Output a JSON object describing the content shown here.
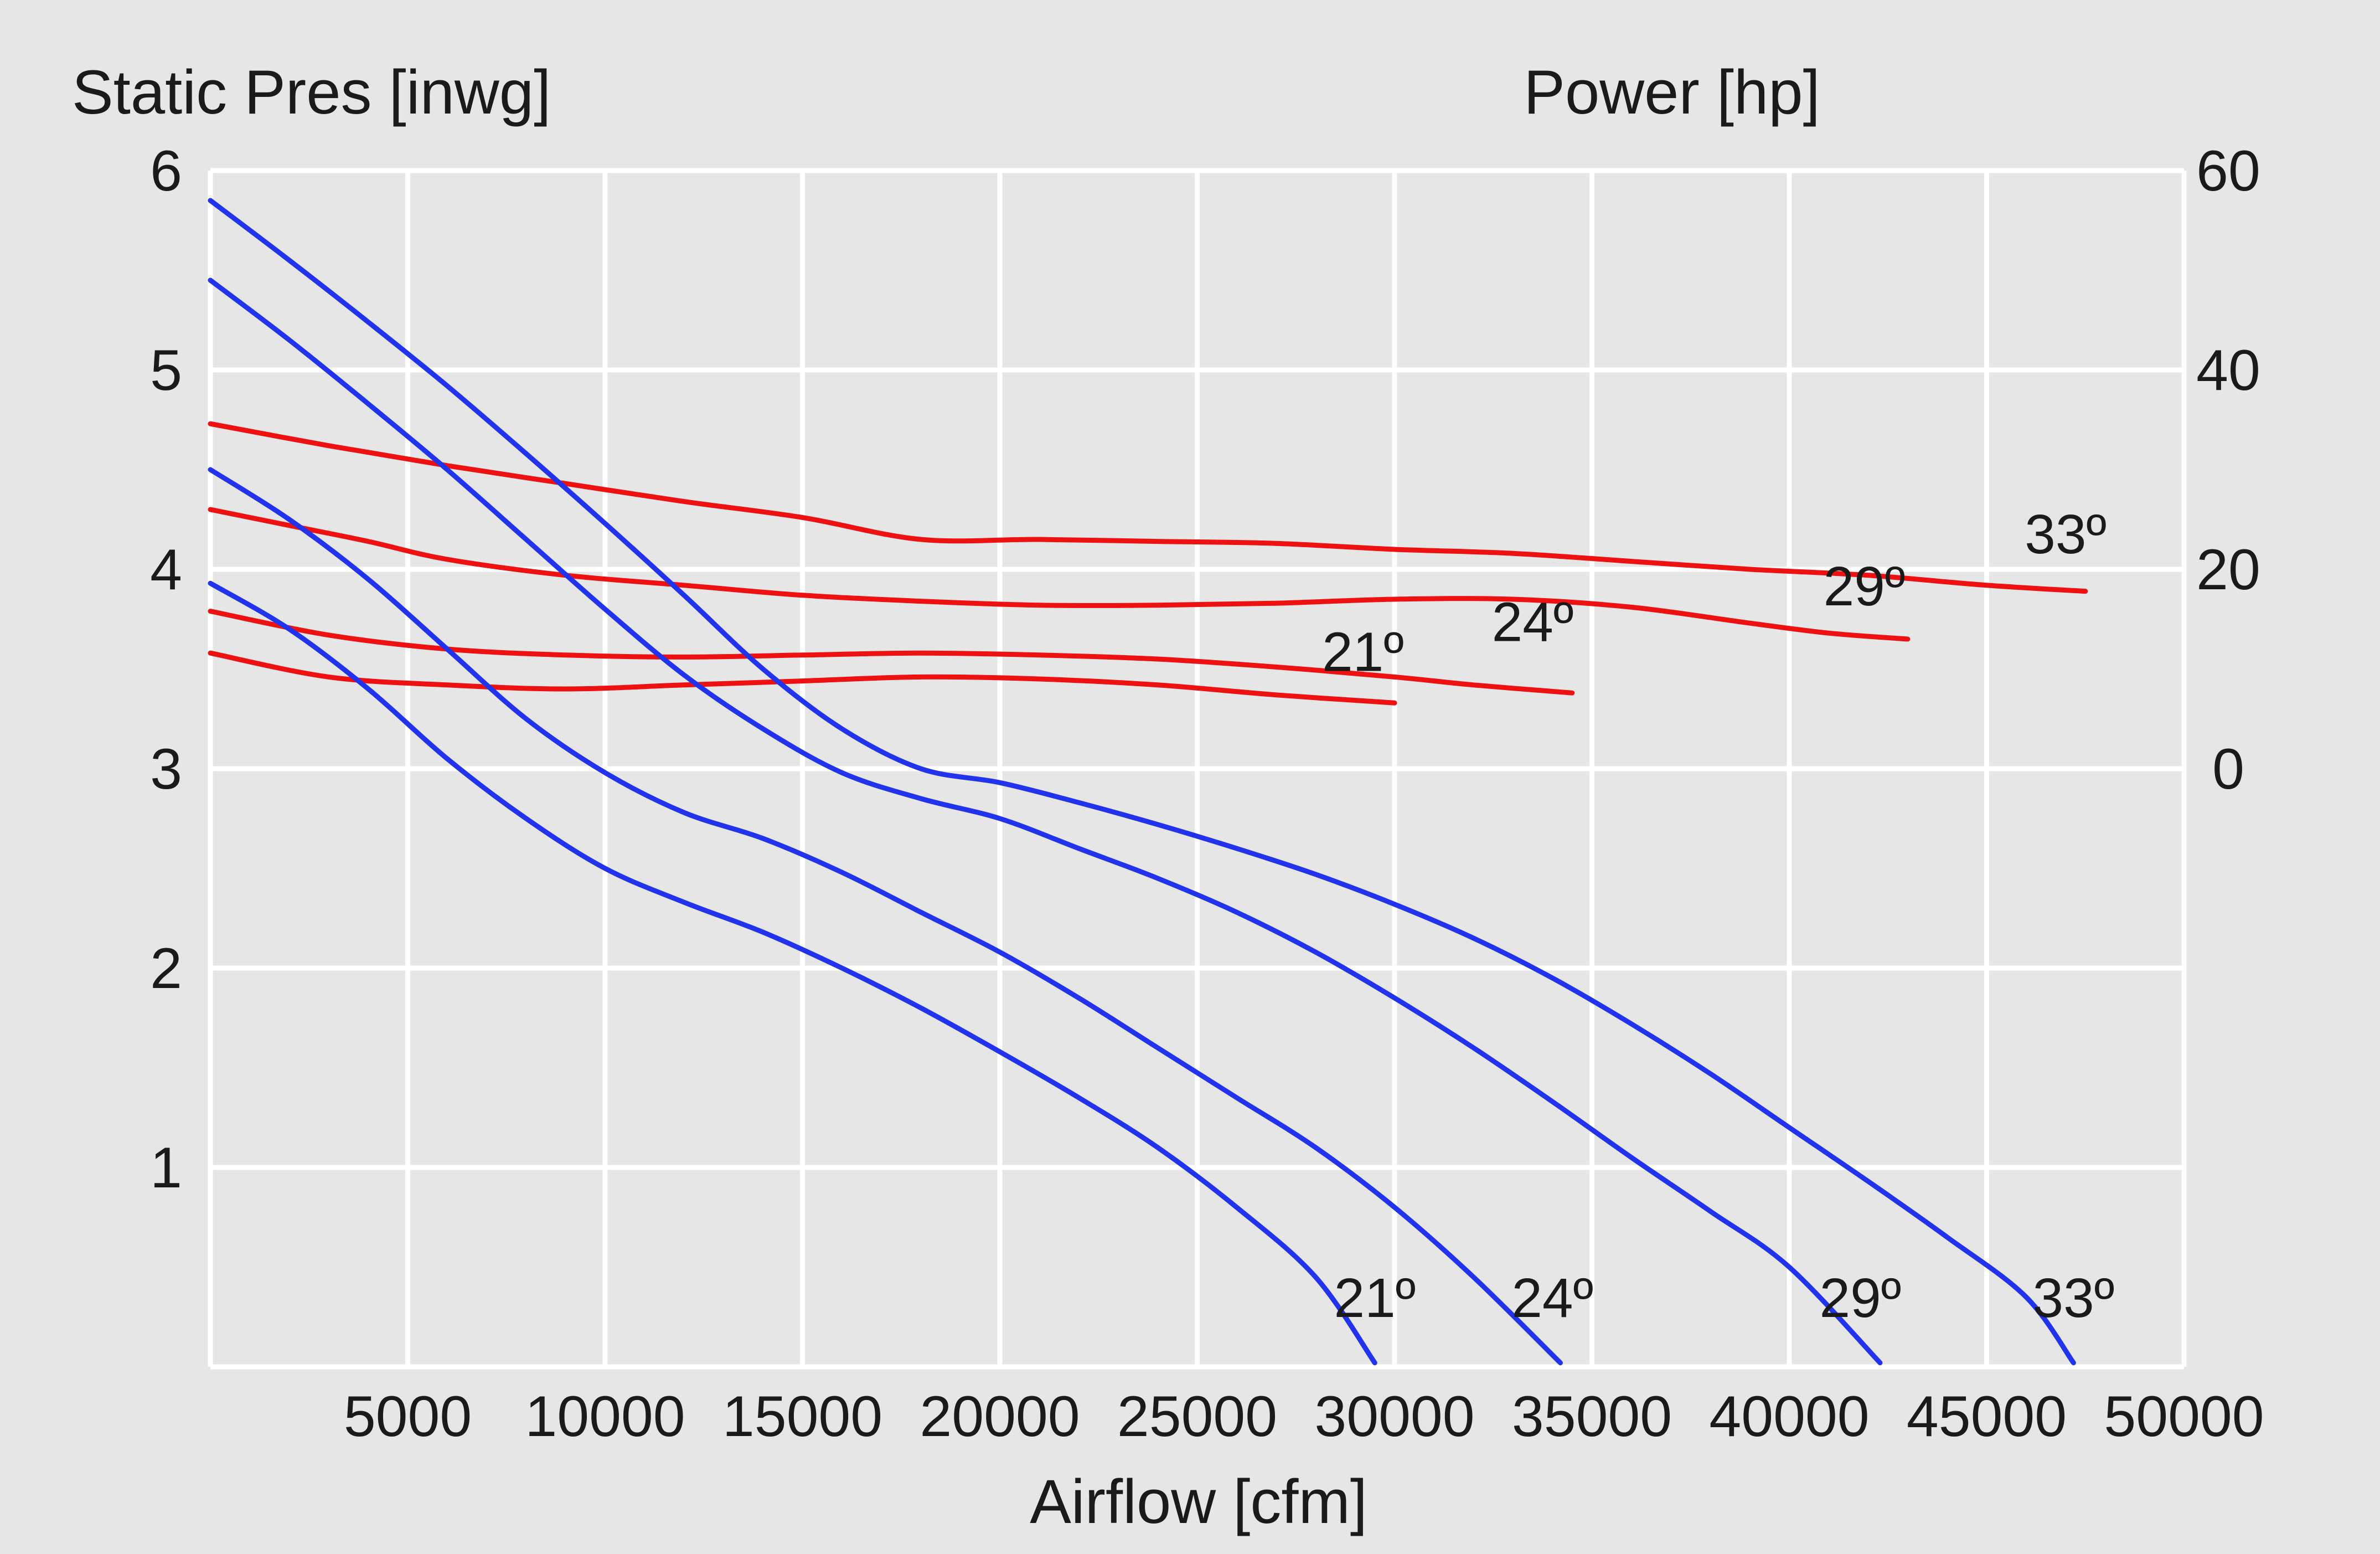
{
  "chart_data": {
    "type": "line",
    "title": "",
    "xlabel": "Airflow [cfm]",
    "ylabel_left": "Static Pres [inwg]",
    "ylabel_right": "Power [hp]",
    "xlim": [
      0,
      50000
    ],
    "ylim_left": [
      0,
      6
    ],
    "ylim_right": [
      -60,
      60
    ],
    "x_ticks": [
      5000,
      10000,
      15000,
      20000,
      25000,
      30000,
      35000,
      40000,
      45000,
      50000
    ],
    "y_left_ticks": [
      1,
      2,
      3,
      4,
      5,
      6
    ],
    "y_right_ticks": [
      0,
      20,
      40,
      60
    ],
    "grid": true,
    "colors": {
      "pressure": "#2233ee",
      "power": "#ee1111",
      "background": "#e6e6e6",
      "grid": "#ffffff"
    },
    "pressure_series": [
      {
        "name": "21º",
        "axis": "left",
        "points": [
          [
            0,
            3.93
          ],
          [
            2000,
            3.7
          ],
          [
            4000,
            3.4
          ],
          [
            6000,
            3.05
          ],
          [
            8000,
            2.75
          ],
          [
            10000,
            2.5
          ],
          [
            12000,
            2.33
          ],
          [
            14000,
            2.18
          ],
          [
            16000,
            2.0
          ],
          [
            18000,
            1.8
          ],
          [
            20000,
            1.58
          ],
          [
            22000,
            1.35
          ],
          [
            24000,
            1.1
          ],
          [
            26000,
            0.8
          ],
          [
            28000,
            0.45
          ],
          [
            29500,
            0.02
          ]
        ]
      },
      {
        "name": "24º",
        "axis": "left",
        "points": [
          [
            0,
            4.5
          ],
          [
            2000,
            4.25
          ],
          [
            4000,
            3.95
          ],
          [
            6000,
            3.6
          ],
          [
            8000,
            3.25
          ],
          [
            10000,
            2.98
          ],
          [
            12000,
            2.78
          ],
          [
            14000,
            2.65
          ],
          [
            16000,
            2.48
          ],
          [
            18000,
            2.28
          ],
          [
            20000,
            2.08
          ],
          [
            22000,
            1.85
          ],
          [
            24000,
            1.6
          ],
          [
            26000,
            1.35
          ],
          [
            28000,
            1.1
          ],
          [
            30000,
            0.8
          ],
          [
            32000,
            0.45
          ],
          [
            34200,
            0.02
          ]
        ]
      },
      {
        "name": "29º",
        "axis": "left",
        "points": [
          [
            0,
            5.45
          ],
          [
            2000,
            5.15
          ],
          [
            4000,
            4.83
          ],
          [
            6000,
            4.5
          ],
          [
            8000,
            4.15
          ],
          [
            10000,
            3.8
          ],
          [
            12000,
            3.47
          ],
          [
            14000,
            3.2
          ],
          [
            16000,
            2.98
          ],
          [
            18000,
            2.85
          ],
          [
            20000,
            2.75
          ],
          [
            22000,
            2.6
          ],
          [
            24000,
            2.45
          ],
          [
            26000,
            2.28
          ],
          [
            28000,
            2.08
          ],
          [
            30000,
            1.85
          ],
          [
            32000,
            1.6
          ],
          [
            34000,
            1.33
          ],
          [
            36000,
            1.05
          ],
          [
            38000,
            0.78
          ],
          [
            40000,
            0.5
          ],
          [
            42300,
            0.02
          ]
        ]
      },
      {
        "name": "33º",
        "axis": "left",
        "points": [
          [
            0,
            5.85
          ],
          [
            2000,
            5.55
          ],
          [
            4000,
            5.24
          ],
          [
            6000,
            4.92
          ],
          [
            8000,
            4.58
          ],
          [
            10000,
            4.23
          ],
          [
            12000,
            3.87
          ],
          [
            14000,
            3.5
          ],
          [
            16000,
            3.2
          ],
          [
            18000,
            3.0
          ],
          [
            20000,
            2.93
          ],
          [
            22000,
            2.83
          ],
          [
            24000,
            2.72
          ],
          [
            26000,
            2.6
          ],
          [
            28000,
            2.47
          ],
          [
            30000,
            2.32
          ],
          [
            32000,
            2.15
          ],
          [
            34000,
            1.95
          ],
          [
            36000,
            1.72
          ],
          [
            38000,
            1.47
          ],
          [
            40000,
            1.2
          ],
          [
            42000,
            0.93
          ],
          [
            44000,
            0.65
          ],
          [
            46000,
            0.35
          ],
          [
            47200,
            0.02
          ]
        ]
      }
    ],
    "power_series": [
      {
        "name": "21º",
        "axis": "right",
        "points": [
          [
            0,
            11.6
          ],
          [
            3000,
            9.2
          ],
          [
            6000,
            8.4
          ],
          [
            9000,
            8.0
          ],
          [
            12000,
            8.4
          ],
          [
            15000,
            8.8
          ],
          [
            18000,
            9.2
          ],
          [
            21000,
            9.0
          ],
          [
            24000,
            8.4
          ],
          [
            27000,
            7.4
          ],
          [
            30000,
            6.6
          ]
        ]
      },
      {
        "name": "24º",
        "axis": "right",
        "points": [
          [
            0,
            15.8
          ],
          [
            3000,
            13.4
          ],
          [
            6000,
            12.0
          ],
          [
            9000,
            11.4
          ],
          [
            12000,
            11.2
          ],
          [
            15000,
            11.4
          ],
          [
            18000,
            11.6
          ],
          [
            21000,
            11.4
          ],
          [
            24000,
            11.0
          ],
          [
            27000,
            10.2
          ],
          [
            30000,
            9.2
          ],
          [
            32000,
            8.4
          ],
          [
            34500,
            7.6
          ]
        ]
      },
      {
        "name": "29º",
        "axis": "right",
        "points": [
          [
            0,
            26.0
          ],
          [
            2000,
            24.4
          ],
          [
            4000,
            22.8
          ],
          [
            6000,
            21.0
          ],
          [
            9000,
            19.4
          ],
          [
            12000,
            18.4
          ],
          [
            15000,
            17.4
          ],
          [
            18000,
            16.8
          ],
          [
            21000,
            16.4
          ],
          [
            24000,
            16.4
          ],
          [
            27000,
            16.6
          ],
          [
            30000,
            17.0
          ],
          [
            33000,
            17.0
          ],
          [
            36000,
            16.2
          ],
          [
            39000,
            14.6
          ],
          [
            41000,
            13.6
          ],
          [
            43000,
            13.0
          ]
        ]
      },
      {
        "name": "33º",
        "axis": "right",
        "points": [
          [
            0,
            34.6
          ],
          [
            3000,
            32.4
          ],
          [
            6000,
            30.4
          ],
          [
            9000,
            28.6
          ],
          [
            12000,
            26.8
          ],
          [
            15000,
            25.2
          ],
          [
            18000,
            23.0
          ],
          [
            21000,
            23.0
          ],
          [
            24000,
            22.8
          ],
          [
            27000,
            22.6
          ],
          [
            30000,
            22.0
          ],
          [
            33000,
            21.6
          ],
          [
            36000,
            20.8
          ],
          [
            39000,
            20.0
          ],
          [
            42000,
            19.4
          ],
          [
            45000,
            18.4
          ],
          [
            47500,
            17.8
          ]
        ]
      }
    ],
    "curve_labels": [
      {
        "text": "21º",
        "x": 29500,
        "y": 0.25,
        "axis": "left"
      },
      {
        "text": "24º",
        "x": 34000,
        "y": 0.25,
        "axis": "left"
      },
      {
        "text": "29º",
        "x": 41800,
        "y": 0.25,
        "axis": "left"
      },
      {
        "text": "33º",
        "x": 47200,
        "y": 0.25,
        "axis": "left"
      },
      {
        "text": "21º",
        "x": 29200,
        "y": 9.8,
        "axis": "right"
      },
      {
        "text": "24º",
        "x": 33500,
        "y": 12.8,
        "axis": "right"
      },
      {
        "text": "29º",
        "x": 41900,
        "y": 16.4,
        "axis": "right"
      },
      {
        "text": "33º",
        "x": 47000,
        "y": 21.6,
        "axis": "right"
      }
    ]
  }
}
